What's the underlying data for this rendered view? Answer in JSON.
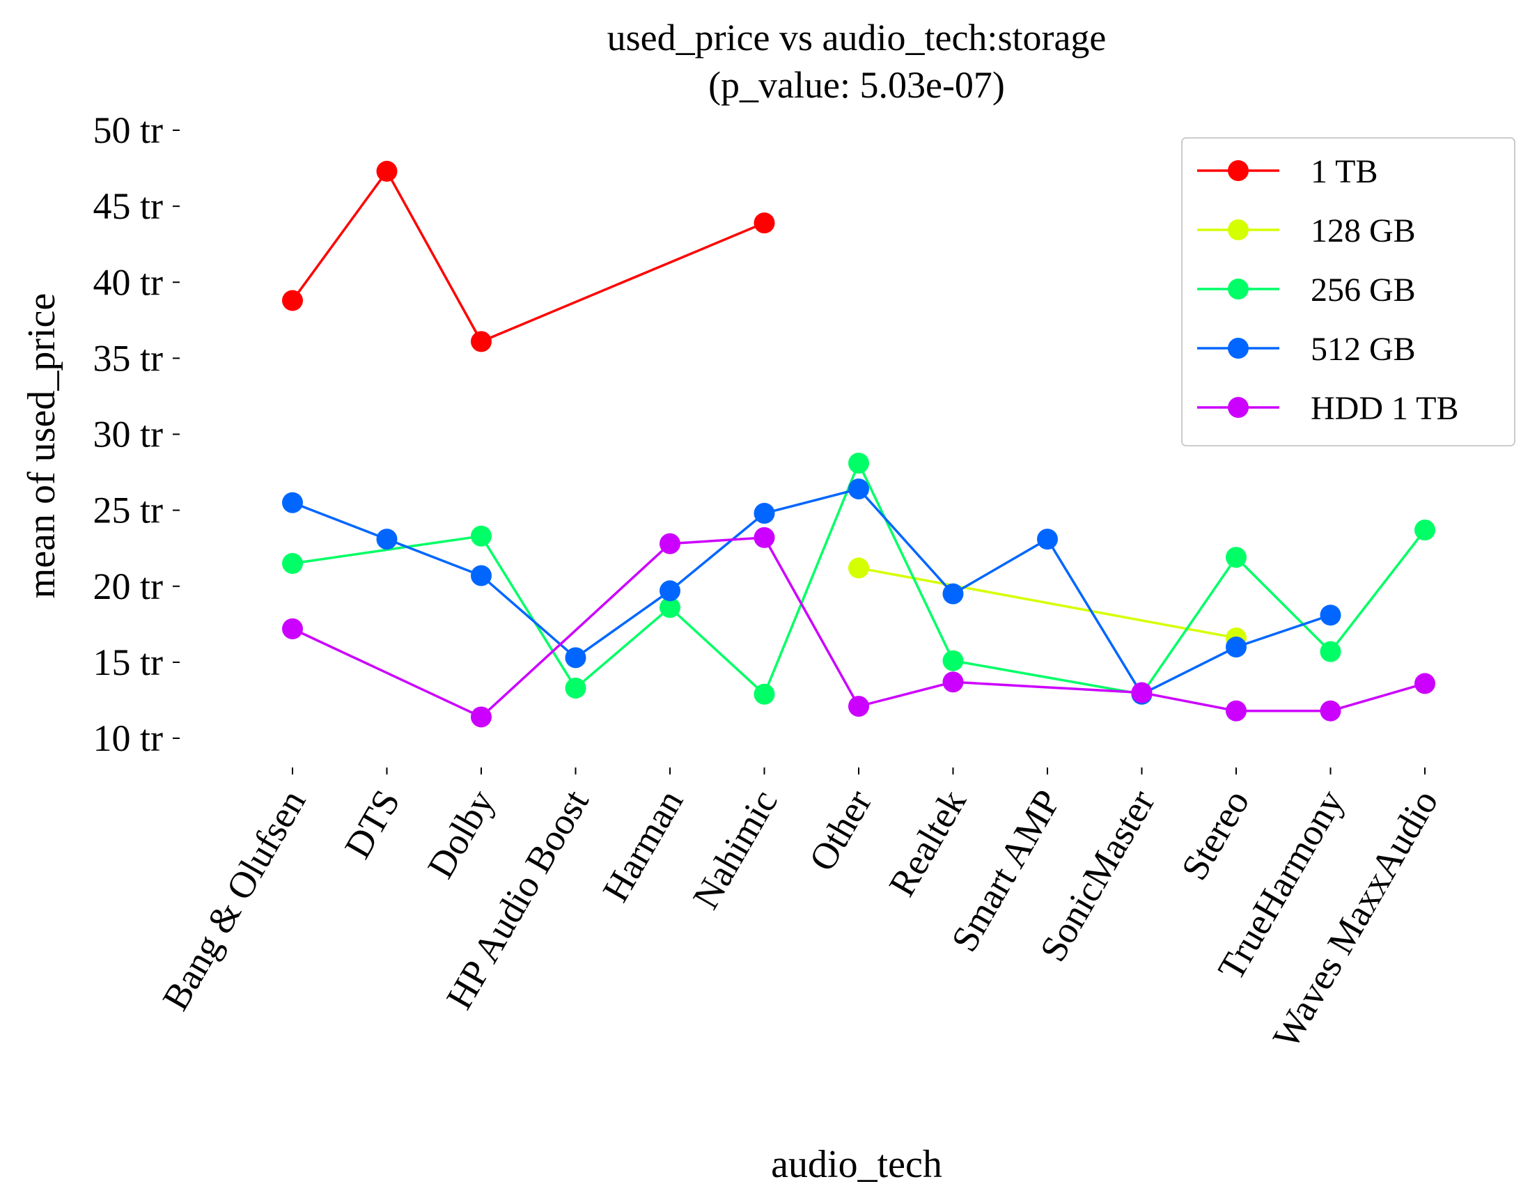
{
  "chart_data": {
    "type": "line",
    "title": "used_price vs audio_tech:storage",
    "subtitle": "(p_value: 5.03e-07)",
    "xlabel": "audio_tech",
    "ylabel": "mean of used_price",
    "categories": [
      "Bang & Olufsen",
      "DTS",
      "Dolby",
      "HP Audio Boost",
      "Harman",
      "Nahimic",
      "Other",
      "Realtek",
      "Smart AMP",
      "SonicMaster",
      "Stereo",
      "TrueHarmony",
      "Waves MaxxAudio"
    ],
    "y_ticks": [
      {
        "value": 10,
        "label": "10 tr"
      },
      {
        "value": 15,
        "label": "15 tr"
      },
      {
        "value": 20,
        "label": "20 tr"
      },
      {
        "value": 25,
        "label": "25 tr"
      },
      {
        "value": 30,
        "label": "30 tr"
      },
      {
        "value": 35,
        "label": "35 tr"
      },
      {
        "value": 40,
        "label": "40 tr"
      },
      {
        "value": 45,
        "label": "45 tr"
      },
      {
        "value": 50,
        "label": "50 tr"
      }
    ],
    "ylim": [
      7.2,
      50.8
    ],
    "grid": false,
    "legend_position": "top-right",
    "series": [
      {
        "name": "1 TB",
        "color": "#ff0000",
        "values": [
          38.8,
          47.3,
          36.1,
          null,
          null,
          43.9,
          null,
          null,
          null,
          null,
          null,
          null,
          null
        ]
      },
      {
        "name": "128 GB",
        "color": "#d4ff00",
        "values": [
          null,
          null,
          null,
          null,
          null,
          null,
          21.2,
          null,
          null,
          null,
          16.6,
          null,
          null
        ]
      },
      {
        "name": "256 GB",
        "color": "#00ff66",
        "values": [
          21.5,
          null,
          23.3,
          13.3,
          18.6,
          12.9,
          28.1,
          15.1,
          null,
          12.9,
          21.9,
          15.7,
          23.7
        ]
      },
      {
        "name": "512 GB",
        "color": "#0066ff",
        "values": [
          25.5,
          23.1,
          20.7,
          15.3,
          19.7,
          24.8,
          26.4,
          19.5,
          23.1,
          12.9,
          16.0,
          18.1,
          null
        ]
      },
      {
        "name": "HDD 1 TB",
        "color": "#cc00ff",
        "values": [
          17.2,
          null,
          11.4,
          null,
          22.8,
          23.2,
          12.1,
          13.7,
          null,
          13.0,
          11.8,
          11.8,
          13.6
        ]
      }
    ]
  }
}
